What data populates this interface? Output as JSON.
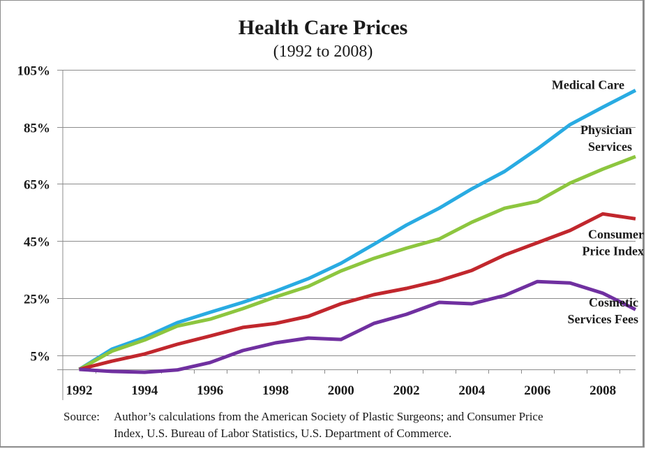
{
  "chart_data": {
    "type": "line",
    "title": "Health Care Prices",
    "subtitle": "(1992 to 2008)",
    "xlabel": "",
    "ylabel": "",
    "x": [
      1992,
      1993,
      1994,
      1995,
      1996,
      1997,
      1998,
      1999,
      2000,
      2001,
      2002,
      2003,
      2004,
      2005,
      2006,
      2007,
      2008,
      2009
    ],
    "x_tick_labels": [
      "1992",
      "1994",
      "1996",
      "1998",
      "2000",
      "2002",
      "2004",
      "2006",
      "2008"
    ],
    "y_tick_labels": [
      "105%",
      "85%",
      "65%",
      "45%",
      "25%",
      "5%"
    ],
    "y_ticks": [
      105,
      85,
      65,
      45,
      25,
      5
    ],
    "ylim": [
      0,
      105
    ],
    "grid": true,
    "legend": "inline-labels-right",
    "series": [
      {
        "name": "Medical Care",
        "label_lines": [
          "Medical Care"
        ],
        "color": "#29ABE2",
        "values": [
          0,
          7.1,
          11.2,
          16.4,
          20.0,
          23.5,
          27.4,
          31.8,
          37.2,
          43.8,
          50.6,
          56.5,
          63.3,
          69.4,
          77.3,
          85.8,
          91.9,
          97.8
        ]
      },
      {
        "name": "Physician Services",
        "label_lines": [
          "Physician",
          "Services"
        ],
        "color": "#8DC63F",
        "values": [
          0,
          6.4,
          10.3,
          15.2,
          17.6,
          21.3,
          25.4,
          29.1,
          34.5,
          38.9,
          42.5,
          45.7,
          51.6,
          56.5,
          58.9,
          65.3,
          70.2,
          74.6
        ]
      },
      {
        "name": "Consumer Price Index",
        "label_lines": [
          "Consumer",
          "Price Index"
        ],
        "color": "#C1272D",
        "values": [
          0,
          2.9,
          5.4,
          8.8,
          11.7,
          14.7,
          16.1,
          18.6,
          23.0,
          26.2,
          28.4,
          31.1,
          34.7,
          40.1,
          44.4,
          48.7,
          54.5,
          52.8
        ]
      },
      {
        "name": "Cosmetic Services Fees",
        "label_lines": [
          "Cosmetic",
          "Services Fees"
        ],
        "color": "#7030A0",
        "values": [
          0,
          -0.7,
          -1.0,
          -0.2,
          2.4,
          6.6,
          9.3,
          11.0,
          10.5,
          16.1,
          19.3,
          23.5,
          23.0,
          25.9,
          30.8,
          30.3,
          26.7,
          21.0
        ]
      }
    ]
  },
  "source": {
    "label": "Source:",
    "line1": "Author’s calculations from the American Society of Plastic Surgeons; and Consumer Price",
    "line2": "Index, U.S. Bureau of Labor Statistics, U.S. Department of Commerce."
  }
}
